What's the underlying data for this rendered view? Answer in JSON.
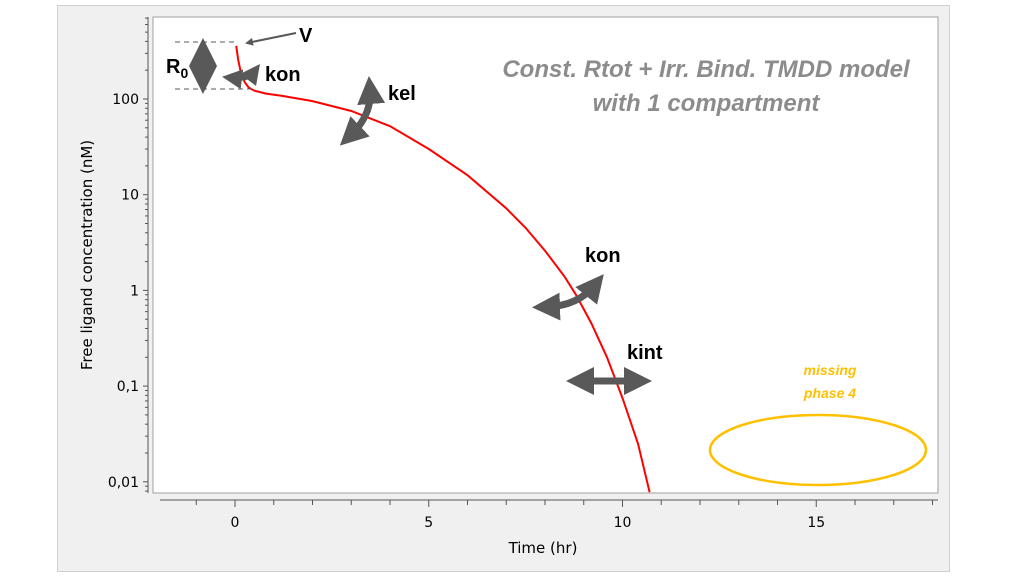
{
  "chart_data": {
    "type": "line",
    "title": [
      "Const. Rtot + Irr. Bind. TMDD model",
      "with 1 compartment"
    ],
    "xlabel": "Time (hr)",
    "ylabel": "Free ligand concentration (nM)",
    "xlim": [
      -2,
      18
    ],
    "ylim": [
      0.0077,
      720
    ],
    "yscale": "log",
    "xticks": [
      {
        "v": 0,
        "label": "0"
      },
      {
        "v": 5,
        "label": "5"
      },
      {
        "v": 10,
        "label": "10"
      },
      {
        "v": 15,
        "label": "15"
      }
    ],
    "yticks": [
      {
        "v": 100,
        "label": "100"
      },
      {
        "v": 10,
        "label": "10"
      },
      {
        "v": 1,
        "label": "1"
      },
      {
        "v": 0.1,
        "label": "0,1"
      },
      {
        "v": 0.01,
        "label": "0,01"
      }
    ],
    "grid": false,
    "series": [
      {
        "name": "Free ligand",
        "color": "#ff0000",
        "x": [
          0.03,
          0.08,
          0.15,
          0.25,
          0.35,
          0.5,
          0.8,
          1.2,
          2,
          3,
          4,
          5,
          6,
          7,
          7.5,
          8,
          8.5,
          8.8,
          9.2,
          9.6,
          10,
          10.4,
          10.7
        ],
        "y": [
          360,
          260,
          190,
          150,
          132,
          122,
          114,
          108,
          95,
          75,
          52,
          30,
          16,
          7.2,
          4.5,
          2.6,
          1.4,
          0.9,
          0.45,
          0.2,
          0.075,
          0.025,
          0.0078
        ]
      }
    ],
    "annotations": {
      "V": "V",
      "R0": "R",
      "R0_sub": "0",
      "kon1": "kon",
      "kel": "kel",
      "kon2": "kon",
      "kint": "kint",
      "missing1": "missing",
      "missing2": "phase 4"
    },
    "colors": {
      "arrow": "#595959",
      "missing": "#ffc000",
      "title": "#8c8c8c"
    }
  }
}
